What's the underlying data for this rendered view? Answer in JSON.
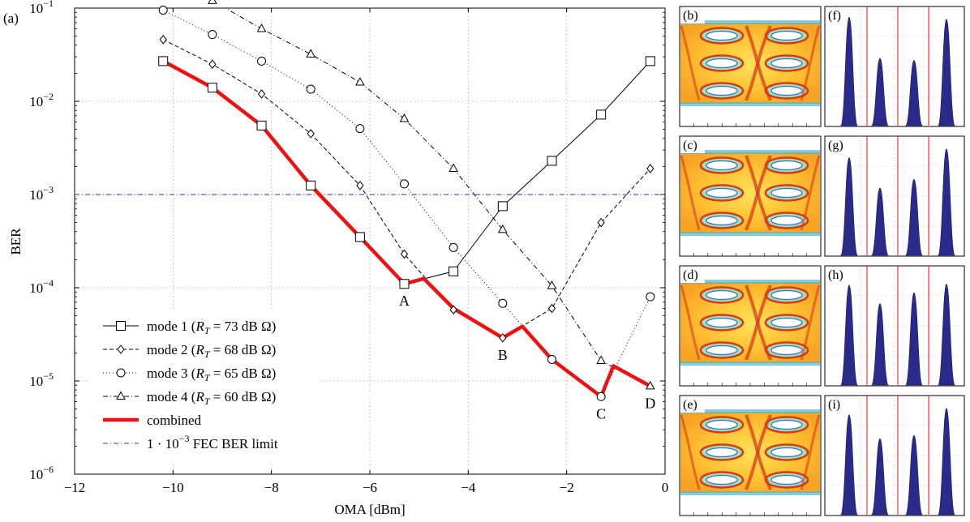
{
  "chart_data": {
    "type": "line",
    "panel_label": "(a)",
    "xlabel": "OMA [dBm]",
    "ylabel": "BER",
    "xlim": [
      -12,
      0
    ],
    "ylim": [
      1e-06,
      0.1
    ],
    "yscale": "log",
    "grid": true,
    "x_ticks": [
      -12,
      -10,
      -8,
      -6,
      -4,
      -2,
      0
    ],
    "x_tick_labels": [
      "−12",
      "−10",
      "−8",
      "−6",
      "−4",
      "−2",
      "0"
    ],
    "y_ticks": [
      1e-06,
      1e-05,
      0.0001,
      0.001,
      0.01,
      0.1
    ],
    "y_tick_labels": [
      "10",
      "10",
      "10",
      "10",
      "10",
      "10"
    ],
    "y_tick_exponents": [
      "−6",
      "−5",
      "−4",
      "−3",
      "−2",
      "−1"
    ],
    "legend_position": "bottom-left",
    "series": [
      {
        "name": "mode 1",
        "name_suffix": "(R_T = 73 dB Ω)",
        "legend_param": "T",
        "legend_value": "= 73 dB Ω",
        "marker": "square",
        "dash": "solid",
        "color": "#000000",
        "x": [
          -10.2,
          -9.2,
          -8.2,
          -7.2,
          -6.2,
          -5.3,
          -4.3,
          -3.3,
          -2.3,
          -1.3,
          -0.3
        ],
        "y": [
          0.027,
          0.014,
          0.0055,
          0.00125,
          0.00035,
          0.00011,
          0.00015,
          0.00075,
          0.0023,
          0.0072,
          0.027
        ]
      },
      {
        "name": "mode 2",
        "legend_param": "T",
        "legend_value": "= 68 dB Ω",
        "marker": "diamond",
        "dash": "dashed",
        "color": "#000000",
        "x": [
          -10.2,
          -9.2,
          -8.2,
          -7.2,
          -6.2,
          -5.3,
          -4.3,
          -3.3,
          -2.3,
          -1.3,
          -0.3
        ],
        "y": [
          0.046,
          0.025,
          0.012,
          0.0045,
          0.00125,
          0.00023,
          5.8e-05,
          2.9e-05,
          6e-05,
          0.0005,
          0.0019
        ]
      },
      {
        "name": "mode 3",
        "legend_param": "T",
        "legend_value": "= 65 dB Ω",
        "marker": "circle",
        "dash": "dotted",
        "color": "#000000",
        "x": [
          -10.2,
          -9.2,
          -8.2,
          -7.2,
          -6.2,
          -5.3,
          -4.3,
          -3.3,
          -2.3,
          -1.3,
          -0.3
        ],
        "y": [
          0.095,
          0.052,
          0.027,
          0.0135,
          0.0051,
          0.0013,
          0.00027,
          6.8e-05,
          1.7e-05,
          6.8e-06,
          8e-05
        ]
      },
      {
        "name": "mode 4",
        "legend_param": "T",
        "legend_value": "= 60 dB Ω",
        "marker": "triangle",
        "dash": "dashdot",
        "color": "#000000",
        "x": [
          -9.2,
          -8.2,
          -7.2,
          -6.2,
          -5.3,
          -4.3,
          -3.3,
          -2.3,
          -1.3,
          -0.3
        ],
        "y": [
          0.12,
          0.06,
          0.032,
          0.016,
          0.0065,
          0.0019,
          0.00042,
          0.000105,
          1.65e-05,
          8.8e-06
        ]
      },
      {
        "name": "combined",
        "marker": "none",
        "dash": "solid",
        "color": "#ee1111",
        "x": [
          -10.2,
          -9.2,
          -8.2,
          -7.2,
          -6.2,
          -5.3,
          -4.9,
          -4.3,
          -3.3,
          -2.9,
          -2.3,
          -1.3,
          -1.05,
          -0.3
        ],
        "y": [
          0.027,
          0.014,
          0.0055,
          0.00125,
          0.00035,
          0.00011,
          0.000125,
          6e-05,
          2.9e-05,
          3.85e-05,
          1.7e-05,
          6.8e-06,
          1.45e-05,
          8.8e-06
        ]
      }
    ],
    "reference_line": {
      "label": "1 · 10⁻³ FEC BER limit",
      "label_main": "1 · 10",
      "label_exp": "−3",
      "label_rest": "FEC BER limit",
      "y": 0.001,
      "color": "#3333aa"
    },
    "annotations": [
      {
        "text": "A",
        "x": -5.3,
        "y": 0.00011
      },
      {
        "text": "B",
        "x": -3.3,
        "y": 2.9e-05
      },
      {
        "text": "C",
        "x": -1.3,
        "y": 6.8e-06
      },
      {
        "text": "D",
        "x": -0.3,
        "y": 8.8e-06
      }
    ],
    "annotation_color": "#dd1111",
    "eye_panels": [
      "(b)",
      "(c)",
      "(d)",
      "(e)"
    ],
    "histogram_panels": [
      "(f)",
      "(g)",
      "(h)",
      "(i)"
    ],
    "histogram_levels": [
      [
        1.0,
        0.62,
        0.6,
        0.98
      ],
      [
        0.9,
        0.62,
        0.7,
        0.98
      ],
      [
        0.92,
        0.75,
        0.85,
        0.93
      ],
      [
        0.92,
        0.7,
        0.73,
        0.98
      ]
    ]
  }
}
